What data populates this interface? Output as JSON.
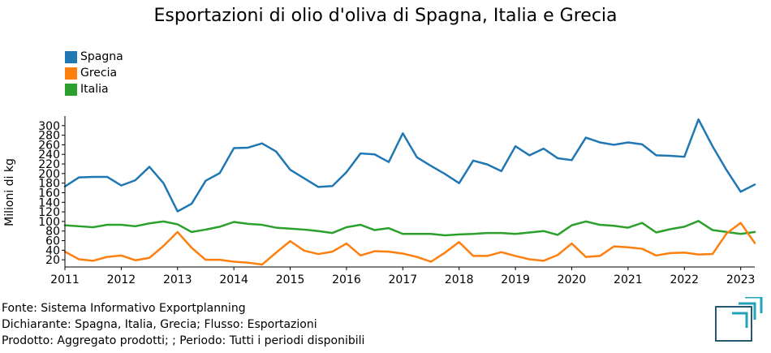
{
  "chart_data": {
    "type": "line",
    "title": "Esportazioni di olio d'oliva di Spagna, Italia e Grecia",
    "ylabel": "Milioni di kg",
    "xlabel": "",
    "ylim": [
      5,
      320
    ],
    "y_ticks": [
      20,
      40,
      60,
      80,
      100,
      120,
      140,
      160,
      180,
      200,
      220,
      240,
      260,
      280,
      300
    ],
    "x_ticks": [
      "2011",
      "2012",
      "2013",
      "2014",
      "2015",
      "2016",
      "2017",
      "2018",
      "2019",
      "2020",
      "2021",
      "2022",
      "2023"
    ],
    "x": [
      "2011-Q1",
      "2011-Q2",
      "2011-Q3",
      "2011-Q4",
      "2012-Q1",
      "2012-Q2",
      "2012-Q3",
      "2012-Q4",
      "2013-Q1",
      "2013-Q2",
      "2013-Q3",
      "2013-Q4",
      "2014-Q1",
      "2014-Q2",
      "2014-Q3",
      "2014-Q4",
      "2015-Q1",
      "2015-Q2",
      "2015-Q3",
      "2015-Q4",
      "2016-Q1",
      "2016-Q2",
      "2016-Q3",
      "2016-Q4",
      "2017-Q1",
      "2017-Q2",
      "2017-Q3",
      "2017-Q4",
      "2018-Q1",
      "2018-Q2",
      "2018-Q3",
      "2018-Q4",
      "2019-Q1",
      "2019-Q2",
      "2019-Q3",
      "2019-Q4",
      "2020-Q1",
      "2020-Q2",
      "2020-Q3",
      "2020-Q4",
      "2021-Q1",
      "2021-Q2",
      "2021-Q3",
      "2021-Q4",
      "2022-Q1",
      "2022-Q2",
      "2022-Q3",
      "2022-Q4",
      "2023-Q1",
      "2023-Q2"
    ],
    "series": [
      {
        "name": "Spagna",
        "color": "#1f77b4",
        "values": [
          173,
          192,
          193,
          193,
          175,
          186,
          214,
          180,
          121,
          137,
          185,
          201,
          253,
          254,
          263,
          246,
          208,
          190,
          172,
          174,
          203,
          242,
          240,
          224,
          284,
          234,
          216,
          199,
          180,
          227,
          219,
          205,
          257,
          238,
          252,
          232,
          228,
          275,
          265,
          260,
          265,
          261,
          238,
          237,
          235,
          313,
          257,
          207,
          162,
          177
        ]
      },
      {
        "name": "Grecia",
        "color": "#ff7f0e",
        "values": [
          37,
          21,
          18,
          26,
          29,
          19,
          24,
          49,
          78,
          45,
          20,
          20,
          16,
          14,
          10,
          35,
          59,
          39,
          32,
          37,
          54,
          29,
          38,
          37,
          33,
          26,
          16,
          35,
          57,
          28,
          28,
          36,
          28,
          21,
          18,
          30,
          54,
          26,
          28,
          48,
          46,
          43,
          29,
          34,
          35,
          31,
          32,
          75,
          97,
          55
        ]
      },
      {
        "name": "Italia",
        "color": "#2ca02c",
        "values": [
          92,
          90,
          88,
          93,
          93,
          90,
          96,
          100,
          94,
          78,
          83,
          89,
          99,
          95,
          93,
          87,
          85,
          83,
          80,
          76,
          88,
          93,
          82,
          86,
          74,
          74,
          74,
          71,
          73,
          74,
          76,
          76,
          74,
          77,
          80,
          72,
          92,
          100,
          93,
          91,
          87,
          97,
          77,
          84,
          89,
          101,
          82,
          78,
          74,
          78
        ]
      }
    ]
  },
  "footer": {
    "source": "Fonte: Sistema Informativo Exportplanning",
    "declarant": "Dichiarante: Spagna, Italia, Grecia; Flusso: Esportazioni",
    "product": "Prodotto: Aggregato prodotti; ; Periodo: Tutti i periodi disponibili"
  },
  "logo_colors": {
    "primary": "#2a5a73",
    "accent": "#21a3b8"
  }
}
